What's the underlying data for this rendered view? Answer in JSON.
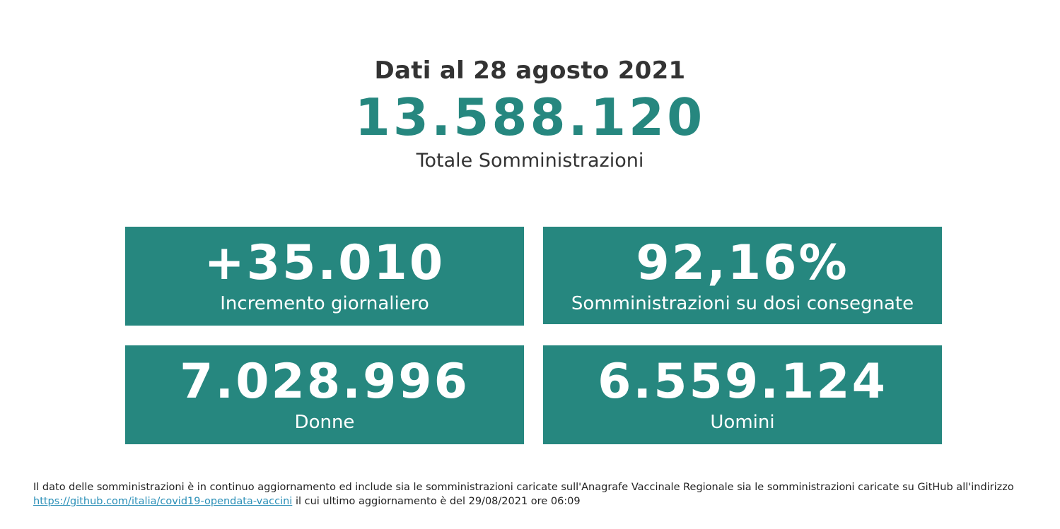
{
  "header": {
    "date_title": "Dati al 28 agosto 2021",
    "total_value": "13.588.120",
    "total_label": "Totale Somministrazioni"
  },
  "cards": {
    "increment": {
      "value": "+35.010",
      "label": "Incremento giornaliero"
    },
    "percent": {
      "value": "92,16%",
      "label": "Somministrazioni su dosi consegnate"
    },
    "women": {
      "value": "7.028.996",
      "label": "Donne"
    },
    "men": {
      "value": "6.559.124",
      "label": "Uomini"
    }
  },
  "footnote": {
    "text_before": "Il dato delle somministrazioni è in continuo aggiornamento ed include sia le somministrazioni caricate sull'Anagrafe Vaccinale Regionale sia le somministrazioni caricate su GitHub all'indirizzo",
    "link_text": "https://github.com/italia/covid19-opendata-vaccini",
    "text_after": "il cui ultimo aggiornamento è del 29/08/2021 ore 06:09"
  },
  "colors": {
    "accent": "#26877f",
    "text": "#333333",
    "link": "#2a8fb7"
  }
}
